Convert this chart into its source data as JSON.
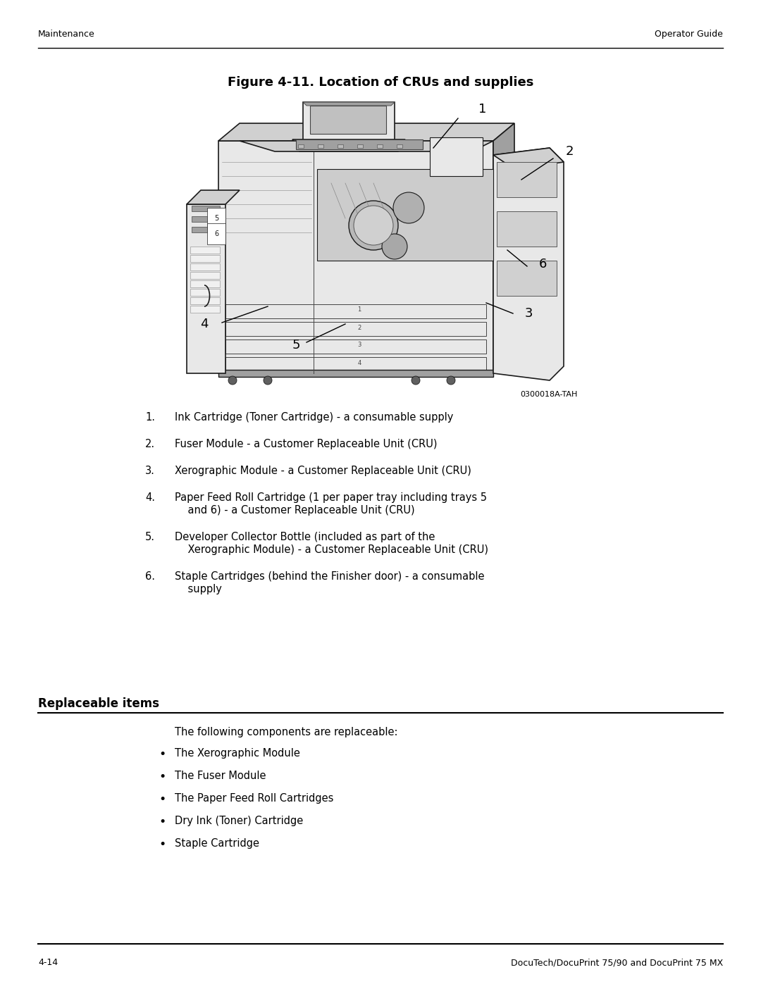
{
  "page_width": 10.8,
  "page_height": 13.97,
  "bg_color": "#ffffff",
  "header_left": "Maintenance",
  "header_right": "Operator Guide",
  "footer_left": "4-14",
  "footer_right": "DocuTech/DocuPrint 75/90 and DocuPrint 75 MX",
  "figure_title": "Figure 4-11. Location of CRUs and supplies",
  "figure_ref": "0300018A-TAH",
  "numbered_items": [
    [
      "1.",
      "Ink Cartridge (Toner Cartridge) - a consumable supply"
    ],
    [
      "2.",
      "Fuser Module - a Customer Replaceable Unit (CRU)"
    ],
    [
      "3.",
      "Xerographic Module - a Customer Replaceable Unit (CRU)"
    ],
    [
      "4.",
      "Paper Feed Roll Cartridge (1 per paper tray including trays 5",
      "    and 6) - a Customer Replaceable Unit (CRU)"
    ],
    [
      "5.",
      "Developer Collector Bottle (included as part of the",
      "    Xerographic Module) - a Customer Replaceable Unit (CRU)"
    ],
    [
      "6.",
      "Staple Cartridges (behind the Finisher door) - a consumable",
      "    supply"
    ]
  ],
  "section_title": "Replaceable items",
  "section_intro": "The following components are replaceable:",
  "bullet_items": [
    "The Xerographic Module",
    "The Fuser Module",
    "The Paper Feed Roll Cartridges",
    "Dry Ink (Toner) Cartridge",
    "Staple Cartridge"
  ],
  "text_color": "#000000",
  "header_fontsize": 9,
  "body_fontsize": 10.5,
  "figure_title_fontsize": 13,
  "section_title_fontsize": 12
}
